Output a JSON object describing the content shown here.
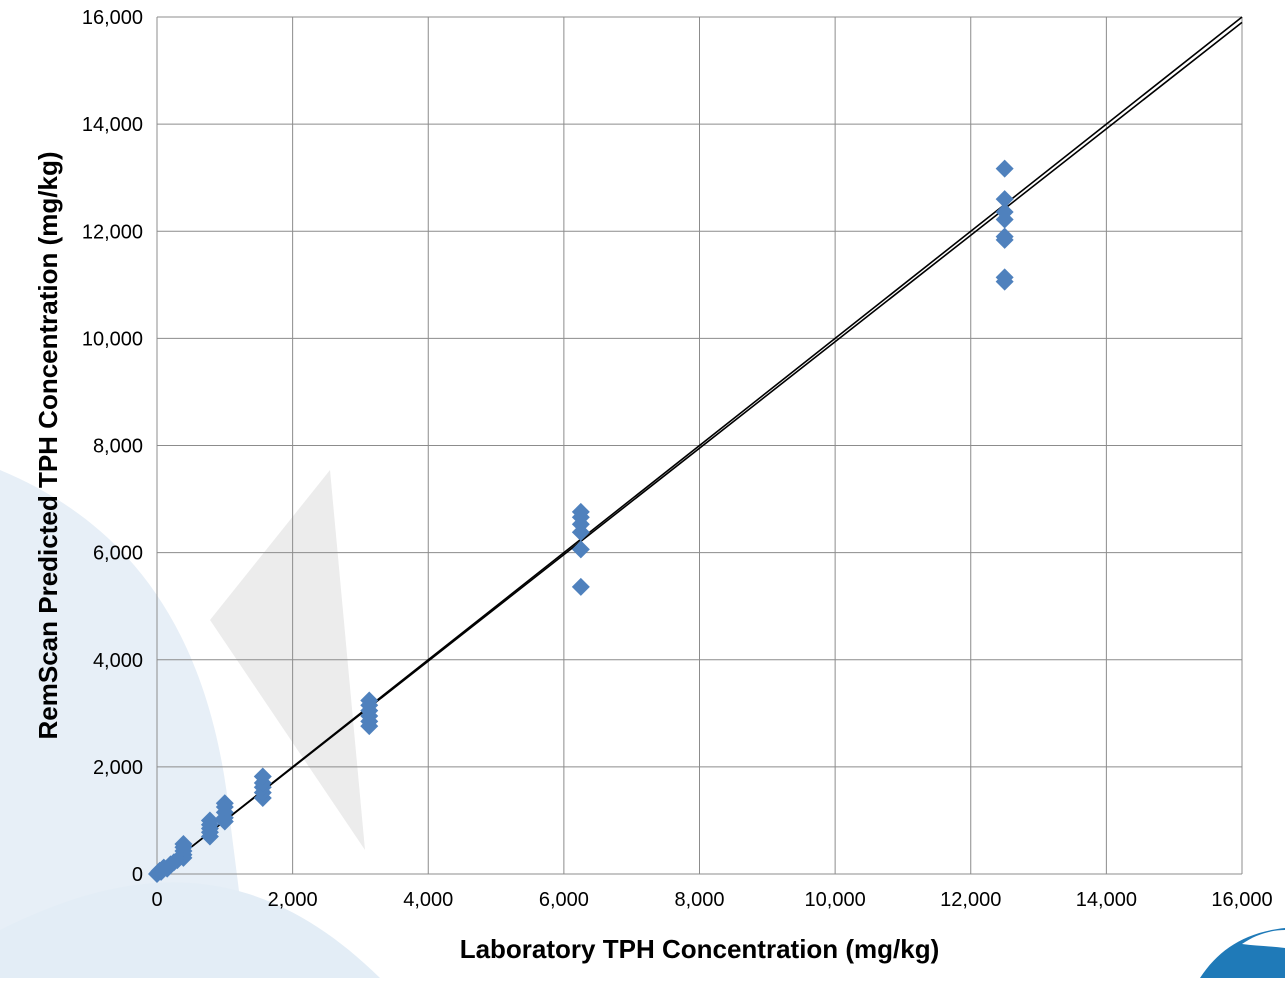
{
  "chart_data": {
    "type": "scatter",
    "xlabel": "Laboratory TPH Concentration (mg/kg)",
    "ylabel": "RemScan Predicted TPH Concentration (mg/kg)",
    "xlim": [
      0,
      16000
    ],
    "ylim": [
      0,
      16000
    ],
    "x_ticks": [
      "0",
      "2,000",
      "4,000",
      "6,000",
      "8,000",
      "10,000",
      "12,000",
      "14,000",
      "16,000"
    ],
    "y_ticks": [
      "0",
      "2,000",
      "4,000",
      "6,000",
      "8,000",
      "10,000",
      "12,000",
      "14,000",
      "16,000"
    ],
    "grid": true,
    "legend": "none",
    "marker_color": "#4F81BD",
    "line_color": "#000000",
    "series": [
      {
        "marker": "diamond",
        "points": [
          [
            0,
            0
          ],
          [
            20,
            30
          ],
          [
            40,
            60
          ],
          [
            60,
            40
          ],
          [
            80,
            90
          ],
          [
            100,
            120
          ],
          [
            150,
            100
          ],
          [
            200,
            180
          ],
          [
            250,
            220
          ],
          [
            300,
            260
          ],
          [
            390,
            300
          ],
          [
            390,
            360
          ],
          [
            390,
            430
          ],
          [
            390,
            500
          ],
          [
            390,
            560
          ],
          [
            780,
            700
          ],
          [
            780,
            780
          ],
          [
            780,
            850
          ],
          [
            780,
            920
          ],
          [
            780,
            1000
          ],
          [
            1000,
            980
          ],
          [
            1000,
            1050
          ],
          [
            1000,
            1150
          ],
          [
            1000,
            1250
          ],
          [
            1000,
            1320
          ],
          [
            1560,
            1420
          ],
          [
            1560,
            1520
          ],
          [
            1560,
            1620
          ],
          [
            1560,
            1700
          ],
          [
            1560,
            1820
          ],
          [
            3130,
            2760
          ],
          [
            3130,
            2850
          ],
          [
            3130,
            2950
          ],
          [
            3130,
            3050
          ],
          [
            3130,
            3150
          ],
          [
            3130,
            3240
          ],
          [
            6250,
            5360
          ],
          [
            6250,
            6060
          ],
          [
            6250,
            6380
          ],
          [
            6250,
            6530
          ],
          [
            6250,
            6660
          ],
          [
            6250,
            6760
          ],
          [
            12500,
            11060
          ],
          [
            12500,
            11140
          ],
          [
            12500,
            11840
          ],
          [
            12500,
            11900
          ],
          [
            12500,
            12220
          ],
          [
            12500,
            12360
          ],
          [
            12500,
            12600
          ],
          [
            12500,
            13170
          ]
        ]
      }
    ],
    "reference_lines": [
      {
        "from": [
          0,
          0
        ],
        "to": [
          16000,
          16000
        ]
      },
      {
        "from": [
          0,
          0
        ],
        "to": [
          16000,
          15900
        ]
      }
    ]
  }
}
